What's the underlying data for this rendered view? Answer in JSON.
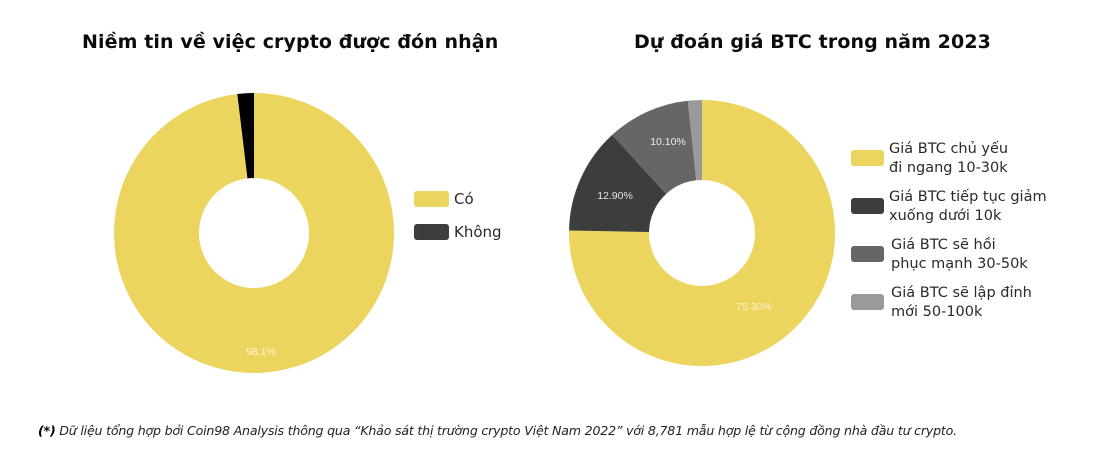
{
  "charts": {
    "left": {
      "title": "Niềm tin về việc crypto được đón nhận",
      "legend": [
        {
          "label": "Có",
          "color": "#ECD55F"
        },
        {
          "label": "Không",
          "color": "#3D3D3D"
        }
      ],
      "slice_labels": {
        "co": "98.1%"
      }
    },
    "right": {
      "title": "Dự đoán giá BTC trong năm 2023",
      "legend": [
        {
          "line1": "Giá BTC chủ yếu",
          "line2": "đi ngang 10-30k",
          "color": "#ECD55F"
        },
        {
          "line1": "Giá BTC tiếp tục giảm",
          "line2": "xuống dưới 10k",
          "color": "#3D3D3D"
        },
        {
          "line1": "Giá BTC sẽ hồi",
          "line2": "phục mạnh 30-50k",
          "color": "#666666"
        },
        {
          "line1": "Giá BTC sẽ lập đỉnh",
          "line2": "mới 50-100k",
          "color": "#9A9A9A"
        }
      ],
      "slice_labels": {
        "sideways": "75.30%",
        "down": "12.90%",
        "recover": "10.10%"
      }
    }
  },
  "footnote": {
    "marker": "(*)",
    "text": " Dữ liệu tổng hợp bởi Coin98 Analysis thông qua “Khảo sát thị trường crypto Việt Nam 2022” với 8,781 mẫu hợp lệ từ cộng đồng nhà đầu tư crypto."
  },
  "chart_data": [
    {
      "type": "pie",
      "title": "Niềm tin về việc crypto được đón nhận",
      "categories": [
        "Có",
        "Không"
      ],
      "values": [
        98.1,
        1.9
      ],
      "colors": [
        "#ECD55F",
        "#000000"
      ],
      "donut": true,
      "legend_position": "right",
      "data_labels": [
        "98.1%",
        ""
      ]
    },
    {
      "type": "pie",
      "title": "Dự đoán giá BTC trong năm 2023",
      "categories": [
        "Giá BTC chủ yếu đi ngang 10-30k",
        "Giá BTC tiếp tục giảm xuống dưới 10k",
        "Giá BTC sẽ hồi phục mạnh 30-50k",
        "Giá BTC sẽ lập đỉnh mới 50-100k"
      ],
      "values": [
        75.3,
        12.9,
        10.1,
        1.7
      ],
      "colors": [
        "#ECD55F",
        "#3D3D3D",
        "#666666",
        "#9A9A9A"
      ],
      "donut": true,
      "legend_position": "right",
      "data_labels": [
        "75.30%",
        "12.90%",
        "10.10%",
        ""
      ]
    }
  ]
}
